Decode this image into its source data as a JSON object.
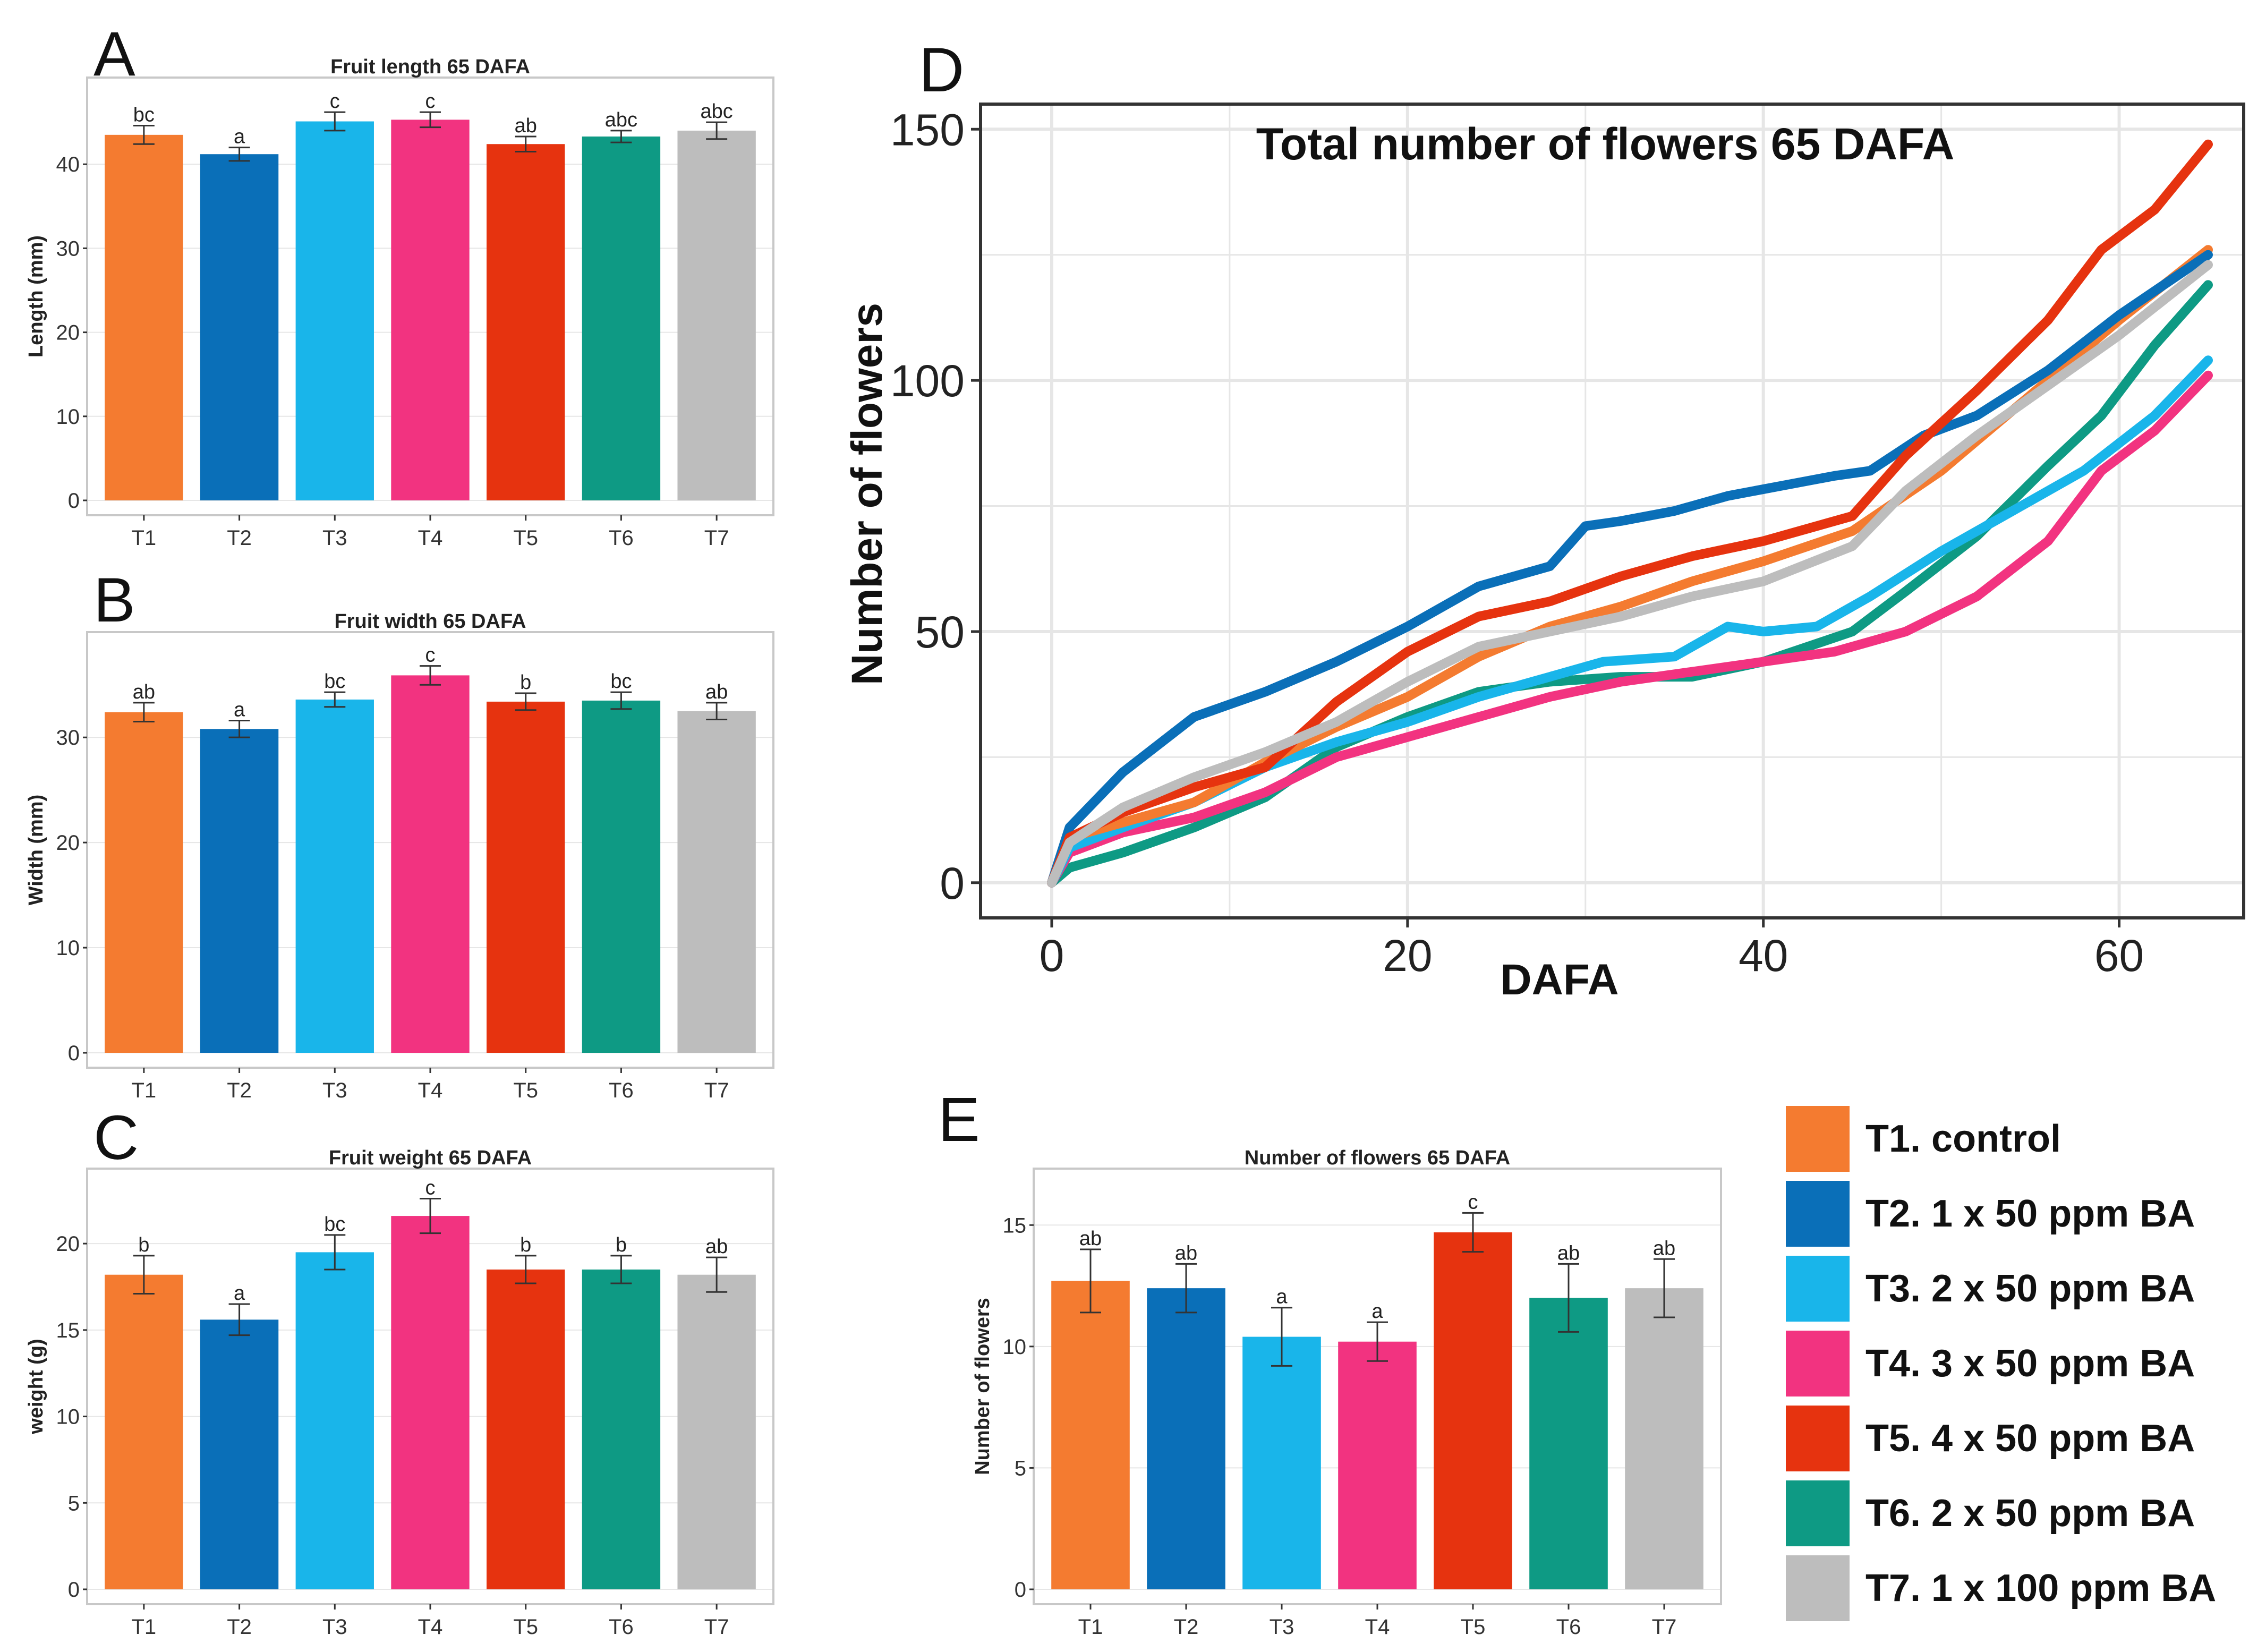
{
  "colors": {
    "T1": "#F47B30",
    "T2": "#0A6FB8",
    "T3": "#19B5EA",
    "T4": "#F23380",
    "T5": "#E6330F",
    "T6": "#0E9A84",
    "T7": "#BDBDBD",
    "panel_border": "#C8C8C8",
    "grid": "#E6E6E6"
  },
  "chart_data": [
    {
      "panel": "A",
      "type": "bar",
      "title": "Fruit length 65 DAFA",
      "ylabel": "Length (mm)",
      "xlabel": "",
      "ylim": [
        0,
        48.8
      ],
      "yticks": [
        0,
        10,
        20,
        30,
        40
      ],
      "categories": [
        "T1",
        "T2",
        "T3",
        "T4",
        "T5",
        "T6",
        "T7"
      ],
      "values": [
        43.5,
        41.2,
        45.1,
        45.3,
        42.4,
        43.3,
        44.0
      ],
      "errors": [
        1.1,
        0.8,
        1.1,
        0.9,
        0.9,
        0.7,
        1.0
      ],
      "letters": [
        "bc",
        "a",
        "c",
        "c",
        "ab",
        "abc",
        "abc"
      ]
    },
    {
      "panel": "B",
      "type": "bar",
      "title": "Fruit width 65 DAFA",
      "ylabel": "Width (mm)",
      "xlabel": "",
      "ylim": [
        0,
        38.8
      ],
      "yticks": [
        0,
        10,
        20,
        30
      ],
      "categories": [
        "T1",
        "T2",
        "T3",
        "T4",
        "T5",
        "T6",
        "T7"
      ],
      "values": [
        32.4,
        30.8,
        33.6,
        35.9,
        33.4,
        33.5,
        32.5
      ],
      "errors": [
        0.9,
        0.8,
        0.7,
        0.9,
        0.8,
        0.8,
        0.8
      ],
      "letters": [
        "ab",
        "a",
        "bc",
        "c",
        "b",
        "bc",
        "ab"
      ]
    },
    {
      "panel": "C",
      "type": "bar",
      "title": "Fruit weight 65 DAFA",
      "ylabel": "weight (g)",
      "xlabel": "",
      "ylim": [
        0,
        23.6
      ],
      "yticks": [
        0,
        5,
        10,
        15,
        20
      ],
      "categories": [
        "T1",
        "T2",
        "T3",
        "T4",
        "T5",
        "T6",
        "T7"
      ],
      "values": [
        18.2,
        15.6,
        19.5,
        21.6,
        18.5,
        18.5,
        18.2
      ],
      "errors": [
        1.1,
        0.9,
        1.0,
        1.0,
        0.8,
        0.8,
        1.0
      ],
      "letters": [
        "b",
        "a",
        "bc",
        "c",
        "b",
        "b",
        "ab"
      ]
    },
    {
      "panel": "D",
      "type": "line",
      "title": "Total number of flowers 65 DAFA",
      "xlabel": "DAFA",
      "ylabel": "Number of flowers",
      "xlim": [
        -4,
        67
      ],
      "ylim": [
        -7,
        155
      ],
      "xticks": [
        0,
        20,
        40,
        60
      ],
      "yticks": [
        0,
        50,
        100,
        150
      ],
      "series": [
        {
          "name": "T1",
          "x": [
            0,
            1,
            4,
            8,
            12,
            16,
            20,
            24,
            28,
            32,
            36,
            40,
            45,
            50,
            55,
            60,
            65
          ],
          "y": [
            0,
            9,
            12,
            16,
            24,
            31,
            37,
            45,
            51,
            55,
            60,
            64,
            70,
            82,
            97,
            112,
            126
          ]
        },
        {
          "name": "T2",
          "x": [
            0,
            1,
            4,
            8,
            12,
            16,
            20,
            24,
            28,
            30,
            32,
            35,
            38,
            41,
            44,
            46,
            49,
            52,
            56,
            60,
            65
          ],
          "y": [
            0,
            11,
            22,
            33,
            38,
            44,
            51,
            59,
            63,
            71,
            72,
            74,
            77,
            79,
            81,
            82,
            89,
            93,
            102,
            113,
            125
          ]
        },
        {
          "name": "T3",
          "x": [
            0,
            1,
            4,
            8,
            12,
            16,
            20,
            24,
            28,
            31,
            35,
            38,
            40,
            43,
            46,
            50,
            54,
            58,
            62,
            65
          ],
          "y": [
            0,
            7,
            11,
            16,
            23,
            28,
            32,
            37,
            41,
            44,
            45,
            51,
            50,
            51,
            57,
            66,
            74,
            82,
            93,
            104
          ]
        },
        {
          "name": "T4",
          "x": [
            0,
            1,
            4,
            8,
            12,
            16,
            20,
            24,
            28,
            32,
            36,
            40,
            44,
            48,
            52,
            56,
            59,
            62,
            65
          ],
          "y": [
            0,
            6,
            10,
            13,
            18,
            25,
            29,
            33,
            37,
            40,
            42,
            44,
            46,
            50,
            57,
            68,
            82,
            90,
            101
          ]
        },
        {
          "name": "T5",
          "x": [
            0,
            1,
            4,
            8,
            12,
            16,
            20,
            24,
            28,
            32,
            36,
            40,
            45,
            48,
            52,
            56,
            59,
            62,
            65
          ],
          "y": [
            0,
            9,
            14,
            19,
            23,
            36,
            46,
            53,
            56,
            61,
            65,
            68,
            73,
            85,
            98,
            112,
            126,
            134,
            147
          ]
        },
        {
          "name": "T6",
          "x": [
            0,
            1,
            4,
            8,
            12,
            16,
            20,
            24,
            28,
            32,
            36,
            40,
            45,
            48,
            52,
            56,
            59,
            62,
            65
          ],
          "y": [
            0,
            3,
            6,
            11,
            17,
            27,
            33,
            38,
            40,
            41,
            41,
            44,
            50,
            58,
            69,
            83,
            93,
            107,
            119
          ]
        },
        {
          "name": "T7",
          "x": [
            0,
            1,
            4,
            8,
            12,
            16,
            20,
            24,
            28,
            32,
            36,
            40,
            45,
            48,
            52,
            56,
            60,
            65
          ],
          "y": [
            0,
            8,
            15,
            21,
            26,
            32,
            40,
            47,
            50,
            53,
            57,
            60,
            67,
            78,
            89,
            99,
            109,
            123
          ]
        }
      ]
    },
    {
      "panel": "E",
      "type": "bar",
      "title": "Number of flowers 65 DAFA",
      "ylabel": "Number of flowers",
      "xlabel": "",
      "ylim": [
        0,
        16.8
      ],
      "yticks": [
        0,
        5,
        10,
        15
      ],
      "categories": [
        "T1",
        "T2",
        "T3",
        "T4",
        "T5",
        "T6",
        "T7"
      ],
      "values": [
        12.7,
        12.4,
        10.4,
        10.2,
        14.7,
        12.0,
        12.4
      ],
      "errors": [
        1.3,
        1.0,
        1.2,
        0.8,
        0.8,
        1.4,
        1.2
      ],
      "letters": [
        "ab",
        "ab",
        "a",
        "a",
        "c",
        "ab",
        "ab"
      ]
    }
  ],
  "panel_labels": {
    "A": "A",
    "B": "B",
    "C": "C",
    "D": "D",
    "E": "E"
  },
  "legend": [
    {
      "key": "T1",
      "label": "T1. control"
    },
    {
      "key": "T2",
      "label": "T2. 1 x 50 ppm BA"
    },
    {
      "key": "T3",
      "label": "T3. 2 x 50 ppm BA"
    },
    {
      "key": "T4",
      "label": "T4. 3 x 50 ppm BA"
    },
    {
      "key": "T5",
      "label": "T5. 4 x 50 ppm BA"
    },
    {
      "key": "T6",
      "label": "T6. 2 x 50 ppm BA"
    },
    {
      "key": "T7",
      "label": "T7. 1 x 100 ppm BA"
    }
  ]
}
